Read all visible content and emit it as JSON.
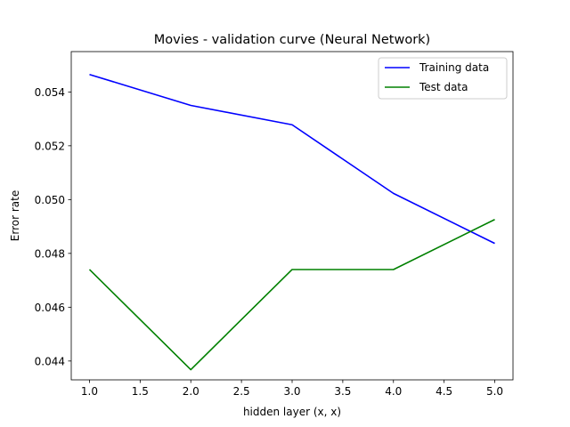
{
  "chart_data": {
    "type": "line",
    "title": "Movies - validation curve (Neural Network)",
    "xlabel": "hidden layer (x, x)",
    "ylabel": "Error rate",
    "x": [
      1.0,
      2.0,
      3.0,
      4.0,
      5.0
    ],
    "xlim": [
      0.82,
      5.18
    ],
    "ylim": [
      0.0433,
      0.0555
    ],
    "xticks": [
      1.0,
      1.5,
      2.0,
      2.5,
      3.0,
      3.5,
      4.0,
      4.5,
      5.0
    ],
    "xtick_labels": [
      "1.0",
      "1.5",
      "2.0",
      "2.5",
      "3.0",
      "3.5",
      "4.0",
      "4.5",
      "5.0"
    ],
    "yticks": [
      0.044,
      0.046,
      0.048,
      0.05,
      0.052,
      0.054
    ],
    "ytick_labels": [
      "0.044",
      "0.046",
      "0.048",
      "0.050",
      "0.052",
      "0.054"
    ],
    "grid": false,
    "legend_position": "upper-right",
    "series": [
      {
        "name": "Training data",
        "color": "#0000ff",
        "values": [
          0.05465,
          0.0535,
          0.05278,
          0.05023,
          0.04837
        ]
      },
      {
        "name": "Test data",
        "color": "#008000",
        "values": [
          0.0474,
          0.04368,
          0.0474,
          0.0474,
          0.04926
        ]
      }
    ]
  }
}
